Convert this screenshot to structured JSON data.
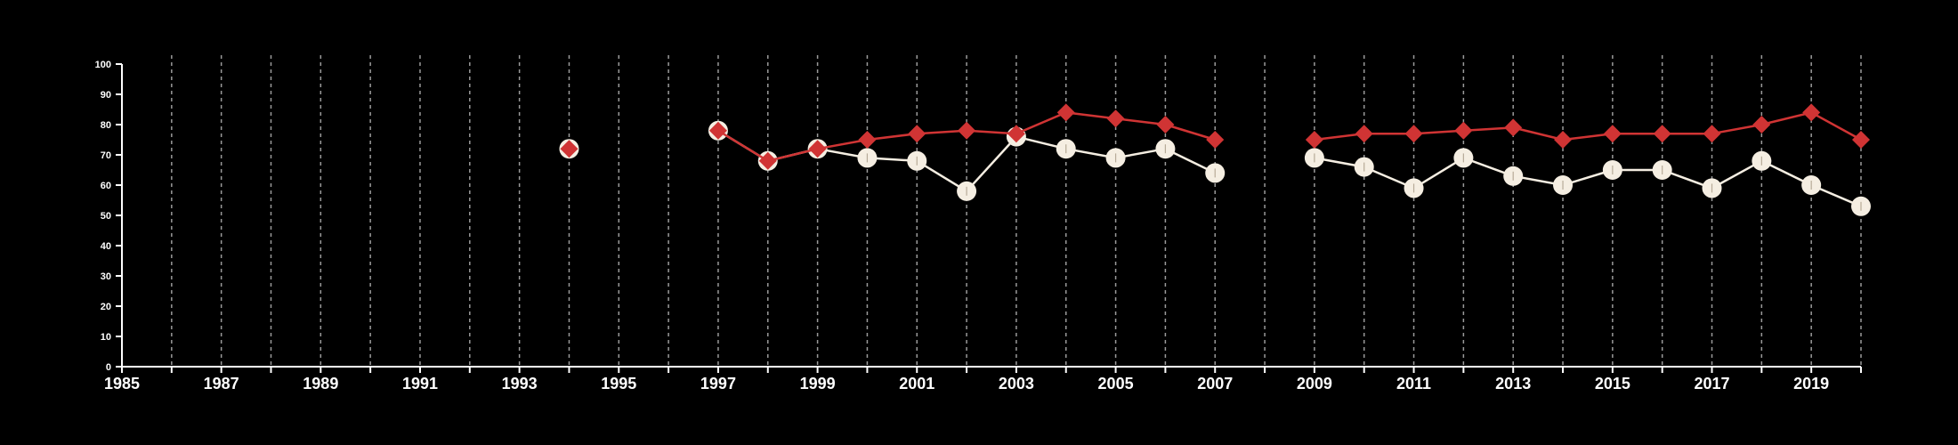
{
  "chart_data": {
    "type": "line",
    "title": "",
    "xlabel": "",
    "ylabel": "",
    "xlim": [
      1985,
      2020
    ],
    "ylim": [
      0,
      100
    ],
    "y_ticks": [
      0,
      10,
      20,
      30,
      40,
      50,
      60,
      70,
      80,
      90,
      100
    ],
    "x_tick_labels": [
      1985,
      1987,
      1989,
      1991,
      1993,
      1995,
      1997,
      1999,
      2001,
      2003,
      2005,
      2007,
      2009,
      2011,
      2013,
      2015,
      2017,
      2019
    ],
    "vertical_grid_years": [
      1986,
      1987,
      1988,
      1989,
      1990,
      1991,
      1992,
      1993,
      1994,
      1995,
      1996,
      1997,
      1998,
      1999,
      2000,
      2001,
      2002,
      2003,
      2004,
      2005,
      2006,
      2007,
      2008,
      2009,
      2010,
      2011,
      2012,
      2013,
      2014,
      2015,
      2016,
      2017,
      2018,
      2019,
      2020
    ],
    "grid": {
      "vertical": true,
      "horizontal": false,
      "style": "dashed"
    },
    "series": [
      {
        "color": "#d03434",
        "marker": "diamond",
        "x": [
          1994,
          1997,
          1998,
          1999,
          2000,
          2001,
          2002,
          2003,
          2004,
          2005,
          2006,
          2007,
          2009,
          2010,
          2011,
          2012,
          2013,
          2014,
          2015,
          2016,
          2017,
          2018,
          2019,
          2020
        ],
        "y": [
          72,
          78,
          68,
          72,
          75,
          77,
          78,
          77,
          84,
          82,
          80,
          75,
          75,
          77,
          77,
          78,
          79,
          75,
          77,
          77,
          77,
          80,
          84,
          75
        ]
      },
      {
        "color": "#f5eee2",
        "marker": "circle",
        "x": [
          1994,
          1997,
          1998,
          1999,
          2000,
          2001,
          2002,
          2003,
          2004,
          2005,
          2006,
          2007,
          2009,
          2010,
          2011,
          2012,
          2013,
          2014,
          2015,
          2016,
          2017,
          2018,
          2019,
          2020
        ],
        "y": [
          72,
          78,
          68,
          72,
          69,
          68,
          58,
          76,
          72,
          69,
          72,
          64,
          69,
          66,
          59,
          69,
          63,
          60,
          65,
          65,
          59,
          68,
          60,
          53
        ]
      }
    ]
  }
}
